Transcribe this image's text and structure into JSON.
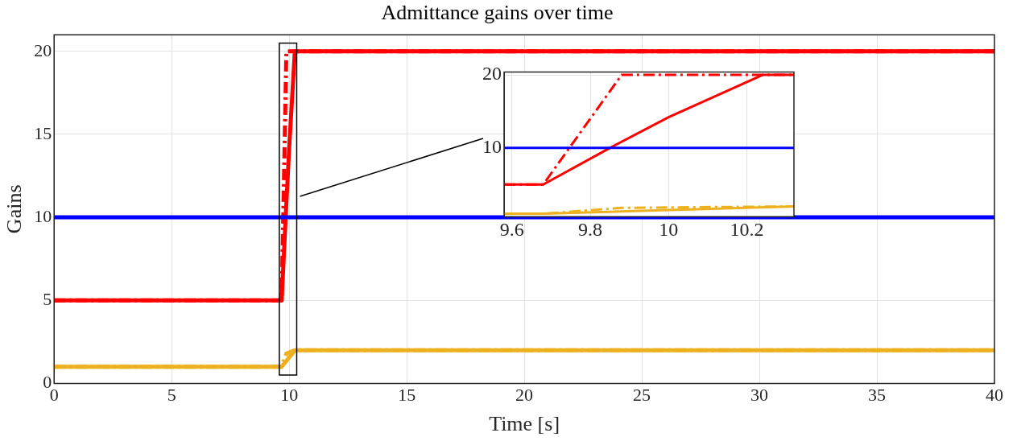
{
  "chart_data": [
    {
      "type": "line",
      "title": "Admittance gains over time",
      "xlabel": "Time [s]",
      "ylabel": "Gains",
      "xlim": [
        0,
        40
      ],
      "ylim": [
        0,
        21
      ],
      "xticks": [
        0,
        5,
        10,
        15,
        20,
        25,
        30,
        35,
        40
      ],
      "yticks": [
        0,
        5,
        10,
        15,
        20
      ],
      "grid": true,
      "series": [
        {
          "color": "#0000ff",
          "x": [
            0,
            40
          ],
          "values": [
            10,
            10
          ],
          "line_style": "solid"
        },
        {
          "color": "#edb120",
          "x": [
            0,
            9.68,
            10.25,
            40
          ],
          "values": [
            1,
            1,
            2,
            2
          ],
          "line_style": "solid"
        },
        {
          "color": "#edb120",
          "x": [
            0,
            9.68,
            9.88,
            10.25,
            40
          ],
          "values": [
            1,
            1,
            1.8,
            2,
            2
          ],
          "line_style": "dashed"
        },
        {
          "color": "#ff0000",
          "x": [
            0,
            9.68,
            9.88,
            40
          ],
          "values": [
            5,
            5,
            20,
            20
          ],
          "line_style": "dashed"
        },
        {
          "color": "#ff0000",
          "x": [
            0,
            9.68,
            9.85,
            10,
            10.24,
            40
          ],
          "values": [
            5,
            5,
            10,
            14.2,
            20,
            20
          ],
          "line_style": "solid"
        }
      ]
    },
    {
      "type": "line",
      "xlim": [
        9.58,
        10.32
      ],
      "ylim": [
        0.6,
        20.4
      ],
      "xticks": [
        9.6,
        9.8,
        10,
        10.2
      ],
      "yticks": [
        10,
        20
      ],
      "grid": true,
      "series": [
        {
          "color": "#0000ff",
          "x": [
            9.58,
            10.32
          ],
          "values": [
            10,
            10
          ],
          "line_style": "solid"
        },
        {
          "color": "#edb120",
          "x": [
            9.58,
            9.68,
            10.32
          ],
          "values": [
            1,
            1,
            2
          ],
          "line_style": "solid"
        },
        {
          "color": "#edb120",
          "x": [
            9.58,
            9.68,
            9.88,
            10.32
          ],
          "values": [
            1,
            1,
            1.8,
            2
          ],
          "line_style": "dashed"
        },
        {
          "color": "#ff0000",
          "x": [
            9.58,
            9.68,
            9.88,
            10.32
          ],
          "values": [
            5,
            5,
            20,
            20
          ],
          "line_style": "dashed"
        },
        {
          "color": "#ff0000",
          "x": [
            9.58,
            9.68,
            9.85,
            10,
            10.24,
            10.32
          ],
          "values": [
            5,
            5,
            10,
            14.2,
            20,
            20
          ],
          "line_style": "solid"
        }
      ]
    }
  ]
}
